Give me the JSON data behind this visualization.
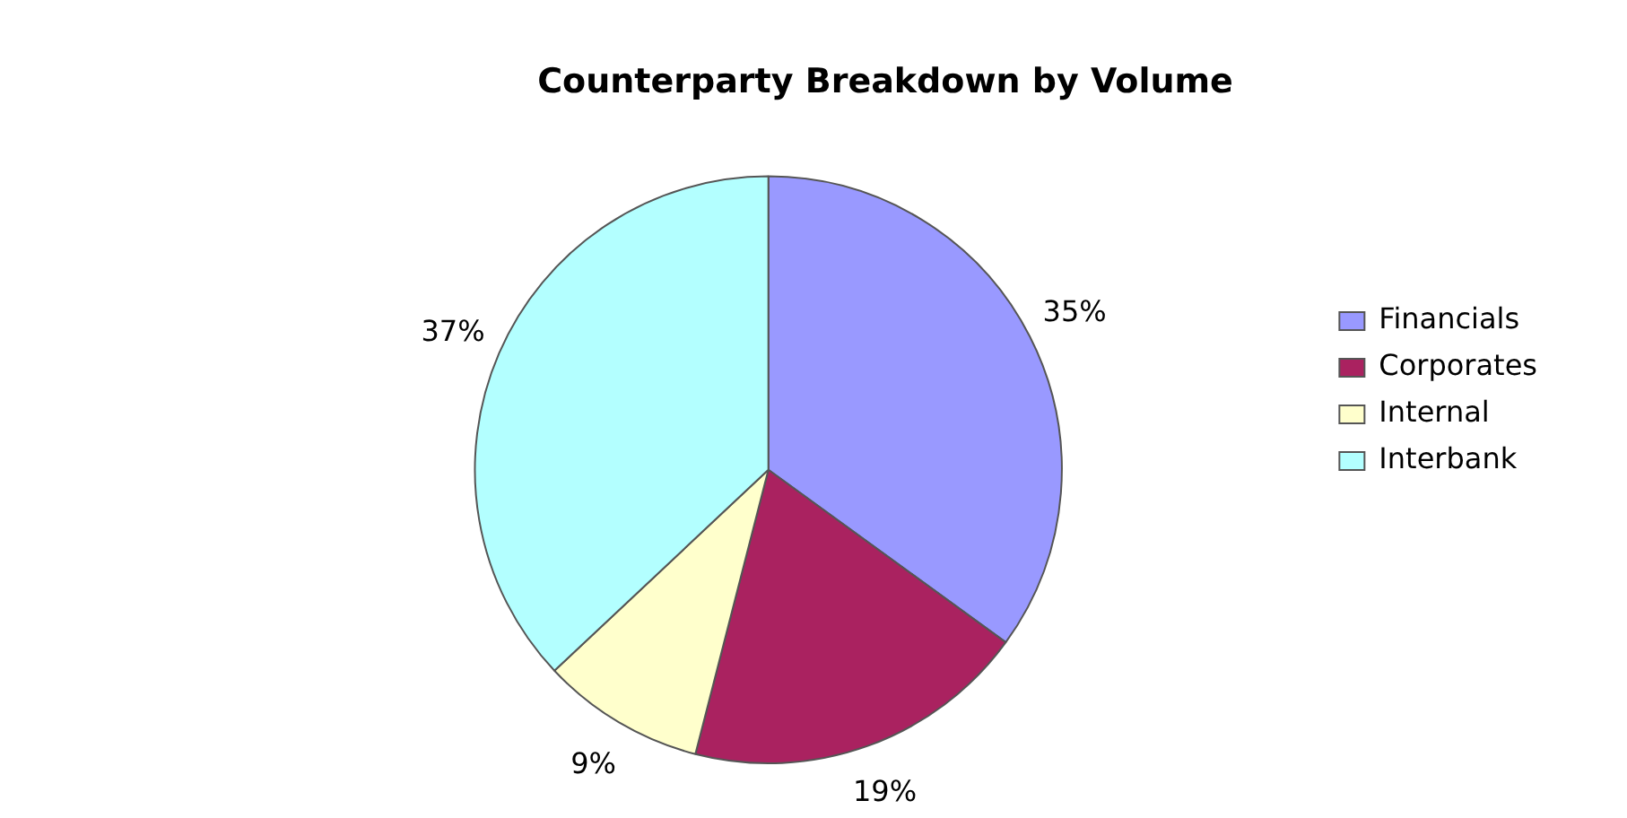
{
  "chart_data": {
    "type": "pie",
    "title": "Counterparty Breakdown by Volume",
    "categories": [
      "Financials",
      "Corporates",
      "Internal",
      "Interbank"
    ],
    "values": [
      35,
      19,
      9,
      37
    ],
    "colors": [
      "#9999ff",
      "#aa2260",
      "#ffffcc",
      "#b3ffff"
    ],
    "value_labels": [
      "35%",
      "19%",
      "9%",
      "37%"
    ],
    "legend": "right"
  }
}
